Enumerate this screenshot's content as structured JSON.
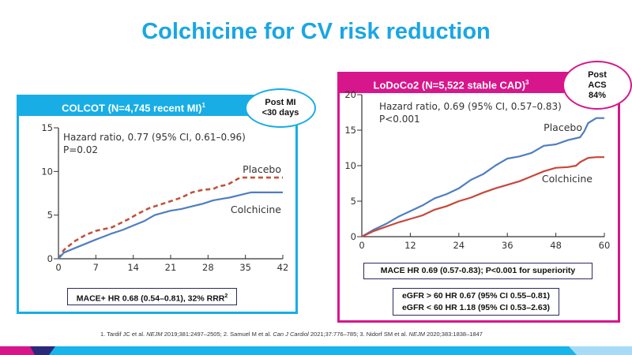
{
  "slide": {
    "title": "Colchicine for CV risk reduction"
  },
  "left_panel": {
    "header": "COLCOT (N=4,745 recent MI)",
    "header_sup": "1",
    "bubble_line1": "Post MI",
    "bubble_line2": "<30 days",
    "result": "MACE+ HR 0.68 (0.54–0.81), 32% RRR",
    "result_sup": "2",
    "accent_color": "#18ade5"
  },
  "right_panel": {
    "header": "LoDoCo2 (N=5,522 stable CAD)",
    "header_sup": "3",
    "bubble_line1": "Post",
    "bubble_line2": "ACS",
    "bubble_line3": "84%",
    "result": "MACE HR 0.69 (0.57-0.83); P<0.001 for superiority",
    "egfr_line1": "eGFR > 60 HR 0.67 (95% CI 0.55–0.81)",
    "egfr_line2": "eGFR < 60 HR 1.18 (95% CI 0.53–2.63)",
    "accent_color": "#d7168c"
  },
  "references": {
    "r1_a": "1. Tardif JC et al. ",
    "r1_j": "NEJM",
    "r1_b": " 2019;381:2497–2505; 2. Samuel M et al. ",
    "r2_j": "Can J Cardiol",
    "r2_b": " 2021;37:776–785; 3. Nidorf SM et al. ",
    "r3_j": "NEJM",
    "r3_b": " 2020;383:1838–1847"
  },
  "chart_data": [
    {
      "type": "line",
      "title": "COLCOT",
      "xlabel": "",
      "ylabel": "",
      "xlim": [
        0,
        42
      ],
      "ylim": [
        0,
        15
      ],
      "xticks": [
        "0",
        "7",
        "14",
        "21",
        "28",
        "35",
        "42"
      ],
      "yticks": [
        "0",
        "5",
        "10",
        "15"
      ],
      "annotation_line1": "Hazard ratio, 0.77 (95% CI, 0.61–0.96)",
      "annotation_line2": "P=0.02",
      "series": [
        {
          "name": "Placebo",
          "style": "dashed",
          "color": "#c0533b",
          "x": [
            0,
            1,
            3,
            5,
            7,
            10,
            13,
            15,
            17,
            19,
            21,
            23,
            25,
            27,
            29,
            30,
            31,
            32,
            34,
            36,
            39,
            42
          ],
          "y": [
            0,
            1.0,
            2.0,
            2.7,
            3.2,
            3.6,
            4.5,
            5.2,
            5.8,
            6.2,
            6.6,
            7.0,
            7.6,
            7.9,
            8.0,
            8.3,
            8.4,
            8.6,
            9.3,
            9.3,
            9.3,
            9.3
          ]
        },
        {
          "name": "Colchicine",
          "style": "solid",
          "color": "#4f7ec0",
          "x": [
            0,
            1,
            3,
            5,
            7,
            10,
            12,
            14,
            16,
            18,
            21,
            23,
            25,
            27,
            29,
            31,
            32,
            34,
            36,
            39,
            42
          ],
          "y": [
            0,
            0.7,
            1.2,
            1.7,
            2.2,
            2.9,
            3.3,
            3.8,
            4.3,
            5.0,
            5.5,
            5.7,
            6.0,
            6.3,
            6.7,
            6.9,
            7.0,
            7.3,
            7.6,
            7.6,
            7.6
          ]
        }
      ],
      "legend": "inline-right"
    },
    {
      "type": "line",
      "title": "LoDoCo2",
      "xlabel": "",
      "ylabel": "",
      "xlim": [
        0,
        60
      ],
      "ylim": [
        0,
        20
      ],
      "xticks": [
        "0",
        "12",
        "24",
        "36",
        "48",
        "60"
      ],
      "yticks": [
        "0",
        "5",
        "10",
        "15",
        "20"
      ],
      "annotation_line1": "Hazard ratio, 0.69 (95% CI, 0.57–0.83)",
      "annotation_line2": "P<0.001",
      "series": [
        {
          "name": "Placebo",
          "style": "solid",
          "color": "#4f7ec0",
          "x": [
            0,
            3,
            6,
            9,
            12,
            15,
            18,
            21,
            24,
            27,
            30,
            33,
            36,
            39,
            42,
            45,
            48,
            51,
            54,
            55,
            56,
            58,
            60
          ],
          "y": [
            0,
            1.0,
            1.8,
            2.8,
            3.6,
            4.4,
            5.4,
            6.0,
            6.8,
            8.0,
            8.8,
            10.0,
            11.0,
            11.3,
            11.8,
            12.8,
            13.0,
            13.6,
            14.0,
            14.8,
            16.0,
            16.7,
            16.7
          ]
        },
        {
          "name": "Colchicine",
          "style": "solid",
          "color": "#c8473a",
          "x": [
            0,
            3,
            6,
            9,
            12,
            15,
            18,
            21,
            24,
            27,
            30,
            33,
            36,
            39,
            42,
            45,
            48,
            51,
            53,
            54,
            56,
            58,
            60
          ],
          "y": [
            0,
            0.8,
            1.4,
            2.0,
            2.5,
            3.0,
            3.8,
            4.3,
            5.0,
            5.5,
            6.2,
            6.8,
            7.3,
            7.8,
            8.5,
            9.2,
            9.7,
            9.8,
            10.0,
            10.5,
            11.1,
            11.2,
            11.2
          ]
        }
      ],
      "legend": "inline-right"
    }
  ]
}
